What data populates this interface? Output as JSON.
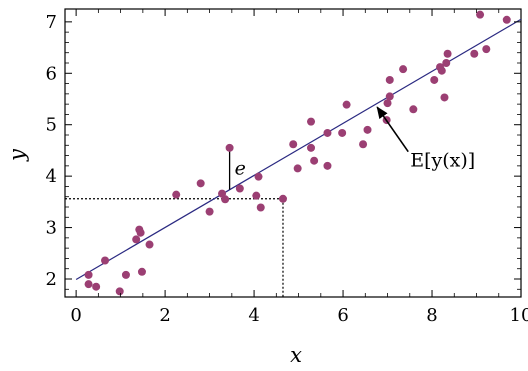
{
  "chart_data": {
    "type": "scatter",
    "title": "",
    "xlabel": "x",
    "ylabel": "y",
    "xlim": [
      -0.25,
      10
    ],
    "ylim": [
      1.65,
      7.25
    ],
    "xticks": [
      "0",
      "2",
      "4",
      "6",
      "8",
      "10"
    ],
    "xtick_values": [
      0,
      2,
      4,
      6,
      8,
      10
    ],
    "yticks": [
      "2",
      "3",
      "4",
      "5",
      "6",
      "7"
    ],
    "ytick_values": [
      2,
      3,
      4,
      5,
      6,
      7
    ],
    "grid": false,
    "colors": {
      "points": "#9b3f73",
      "line": "#2b2a82"
    },
    "regression_line": {
      "x": [
        0,
        10
      ],
      "y": [
        1.99,
        7.05
      ]
    },
    "points": [
      {
        "x": 0.28,
        "y": 2.08
      },
      {
        "x": 0.28,
        "y": 1.9
      },
      {
        "x": 0.45,
        "y": 1.85
      },
      {
        "x": 0.65,
        "y": 2.36
      },
      {
        "x": 0.98,
        "y": 1.76
      },
      {
        "x": 1.12,
        "y": 2.08
      },
      {
        "x": 1.35,
        "y": 2.77
      },
      {
        "x": 1.42,
        "y": 2.96
      },
      {
        "x": 1.45,
        "y": 2.9
      },
      {
        "x": 1.48,
        "y": 2.14
      },
      {
        "x": 1.65,
        "y": 2.67
      },
      {
        "x": 2.25,
        "y": 3.64
      },
      {
        "x": 2.8,
        "y": 3.86
      },
      {
        "x": 3.0,
        "y": 3.31
      },
      {
        "x": 3.28,
        "y": 3.66
      },
      {
        "x": 3.35,
        "y": 3.55
      },
      {
        "x": 3.45,
        "y": 4.55
      },
      {
        "x": 3.68,
        "y": 3.76
      },
      {
        "x": 4.05,
        "y": 3.62
      },
      {
        "x": 4.1,
        "y": 3.99
      },
      {
        "x": 4.15,
        "y": 3.39
      },
      {
        "x": 4.65,
        "y": 3.56
      },
      {
        "x": 4.88,
        "y": 4.62
      },
      {
        "x": 4.98,
        "y": 4.15
      },
      {
        "x": 5.28,
        "y": 5.06
      },
      {
        "x": 5.28,
        "y": 4.55
      },
      {
        "x": 5.35,
        "y": 4.3
      },
      {
        "x": 5.65,
        "y": 4.84
      },
      {
        "x": 5.65,
        "y": 4.2
      },
      {
        "x": 5.98,
        "y": 4.84
      },
      {
        "x": 6.08,
        "y": 5.39
      },
      {
        "x": 6.45,
        "y": 4.62
      },
      {
        "x": 6.55,
        "y": 4.9
      },
      {
        "x": 6.98,
        "y": 5.09
      },
      {
        "x": 7.0,
        "y": 5.42
      },
      {
        "x": 7.05,
        "y": 5.55
      },
      {
        "x": 7.05,
        "y": 5.87
      },
      {
        "x": 7.35,
        "y": 6.08
      },
      {
        "x": 7.58,
        "y": 5.3
      },
      {
        "x": 8.05,
        "y": 5.87
      },
      {
        "x": 8.18,
        "y": 6.12
      },
      {
        "x": 8.22,
        "y": 6.05
      },
      {
        "x": 8.28,
        "y": 5.53
      },
      {
        "x": 8.32,
        "y": 6.2
      },
      {
        "x": 8.35,
        "y": 6.38
      },
      {
        "x": 8.95,
        "y": 6.38
      },
      {
        "x": 9.08,
        "y": 7.14
      },
      {
        "x": 9.22,
        "y": 6.47
      },
      {
        "x": 9.68,
        "y": 7.04
      }
    ],
    "residual": {
      "label": "e",
      "x": 3.45,
      "y_point": 4.55,
      "y_line": 3.74
    },
    "projection": {
      "x": 4.65,
      "y": 3.56
    },
    "annotation": {
      "label": "E[y(x)]",
      "arrow_to": {
        "x": 6.7,
        "y": 5.4
      },
      "text_at": {
        "x": 7.6,
        "y": 4.3
      }
    }
  }
}
